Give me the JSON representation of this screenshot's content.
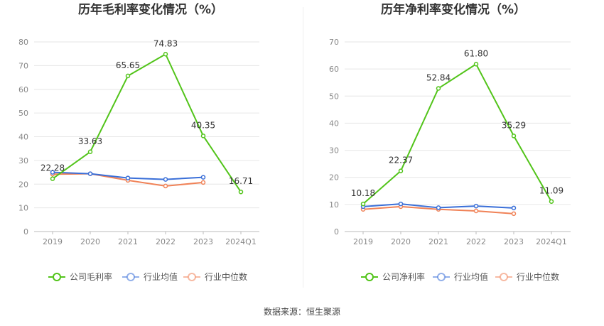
{
  "chart_data": [
    {
      "type": "line",
      "title": "历年毛利率变化情况（%）",
      "categories": [
        "2019",
        "2020",
        "2021",
        "2022",
        "2023",
        "2024Q1"
      ],
      "ylim": [
        0,
        80
      ],
      "yticks": [
        0,
        10,
        20,
        30,
        40,
        50,
        60,
        70,
        80
      ],
      "grid": true,
      "legend_position": "bottom",
      "series": [
        {
          "name": "公司毛利率",
          "color": "#52c41a",
          "labeled": true,
          "values": [
            22.28,
            33.63,
            65.65,
            74.83,
            40.35,
            16.71
          ],
          "labels": [
            "22.28",
            "33.63",
            "65.65",
            "74.83",
            "40.35",
            "16.71"
          ]
        },
        {
          "name": "行业均值",
          "color": "#3a6fd8",
          "labeled": false,
          "values": [
            25.0,
            24.4,
            22.6,
            22.0,
            22.9,
            null
          ]
        },
        {
          "name": "行业中位数",
          "color": "#f08257",
          "labeled": false,
          "values": [
            24.2,
            24.4,
            21.6,
            19.2,
            20.7,
            null
          ]
        }
      ]
    },
    {
      "type": "line",
      "title": "历年净利率变化情况（%）",
      "categories": [
        "2019",
        "2020",
        "2021",
        "2022",
        "2023",
        "2024Q1"
      ],
      "ylim": [
        0,
        70
      ],
      "yticks": [
        0,
        10,
        20,
        30,
        40,
        50,
        60,
        70
      ],
      "grid": true,
      "legend_position": "bottom",
      "series": [
        {
          "name": "公司净利率",
          "color": "#52c41a",
          "labeled": true,
          "values": [
            10.18,
            22.37,
            52.84,
            61.8,
            35.29,
            11.09
          ],
          "labels": [
            "10.18",
            "22.37",
            "52.84",
            "61.80",
            "35.29",
            "11.09"
          ]
        },
        {
          "name": "行业均值",
          "color": "#3a6fd8",
          "labeled": false,
          "values": [
            9.2,
            10.2,
            8.8,
            9.4,
            8.7,
            null
          ]
        },
        {
          "name": "行业中位数",
          "color": "#f08257",
          "labeled": false,
          "values": [
            8.2,
            9.2,
            8.2,
            7.6,
            6.6,
            null
          ]
        }
      ]
    }
  ],
  "source_text": "数据来源：恒生聚源"
}
